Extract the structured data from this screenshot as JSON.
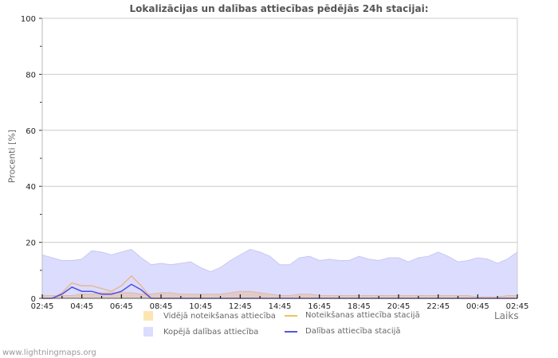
{
  "title": "Lokalizācijas un dalības attiecības pēdējās 24h stacijai:",
  "footer": "www.lightningmaps.org",
  "axes": {
    "ylabel": "Procenti  [%]",
    "xlabel": "Laiks"
  },
  "legend": [
    {
      "label": "Vidējā noteikšanas attiecība",
      "kind": "area",
      "color": "#fce5b3"
    },
    {
      "label": "Noteikšanas attiecība stacijā",
      "kind": "line",
      "color": "#f0c060"
    },
    {
      "label": "Kopējā dalības attiecība",
      "kind": "area",
      "color": "#dcdcff"
    },
    {
      "label": "Dalības attiecība stacijā",
      "kind": "line",
      "color": "#5555dd"
    }
  ],
  "chart_data": {
    "type": "area",
    "title": "Lokalizācijas un dalības attiecības pēdējās 24h stacijai:",
    "xlabel": "Laiks",
    "ylabel": "Procenti  [%]",
    "ylim": [
      0,
      100
    ],
    "yticks": [
      0,
      20,
      40,
      60,
      80,
      100
    ],
    "xtick_labels": [
      "02:45",
      "04:45",
      "06:45",
      "08:45",
      "10:45",
      "12:45",
      "14:45",
      "16:45",
      "18:45",
      "20:45",
      "22:45",
      "00:45",
      "02:45"
    ],
    "grid": true,
    "legend_position": "bottom",
    "x": [
      "02:45",
      "03:15",
      "03:45",
      "04:15",
      "04:45",
      "05:15",
      "05:45",
      "06:15",
      "06:45",
      "07:15",
      "07:45",
      "08:15",
      "08:45",
      "09:15",
      "09:45",
      "10:15",
      "10:45",
      "11:15",
      "11:45",
      "12:15",
      "12:45",
      "13:15",
      "13:45",
      "14:15",
      "14:45",
      "15:15",
      "15:45",
      "16:15",
      "16:45",
      "17:15",
      "17:45",
      "18:15",
      "18:45",
      "19:15",
      "19:45",
      "20:15",
      "20:45",
      "21:15",
      "21:45",
      "22:15",
      "22:45",
      "23:15",
      "23:45",
      "00:15",
      "00:45",
      "01:15",
      "01:45",
      "02:15",
      "02:45"
    ],
    "series": [
      {
        "name": "Kopējā dalības attiecība",
        "kind": "area",
        "color": "#dcdcff",
        "values": [
          15.5,
          14.5,
          13.5,
          13.5,
          14,
          17,
          16.5,
          15.5,
          16.5,
          17.5,
          14.5,
          12,
          12.5,
          12,
          12.5,
          13,
          11,
          9.5,
          11,
          13.5,
          15.5,
          17.5,
          16.5,
          15,
          12,
          12,
          14.5,
          15,
          13.5,
          14,
          13.5,
          13.5,
          15,
          14,
          13.5,
          14.5,
          14.5,
          13,
          14.5,
          15,
          16.5,
          15,
          13,
          13.5,
          14.5,
          14,
          12.5,
          14,
          16.5
        ]
      },
      {
        "name": "Vidējā noteikšanas attiecība",
        "kind": "area",
        "color": "#fce5b3",
        "values": [
          1,
          1,
          1,
          1,
          1.5,
          1.5,
          2,
          2,
          2,
          2,
          1.5,
          1.5,
          2,
          2,
          1.5,
          1.5,
          1.5,
          1.5,
          1.5,
          2,
          2.5,
          2.5,
          2,
          1.5,
          1,
          1,
          1.5,
          1.5,
          1,
          1,
          1,
          1,
          1,
          1,
          1,
          1,
          1,
          1,
          1,
          1,
          1,
          1,
          1,
          1,
          0.5,
          0.5,
          0.5,
          1,
          1
        ]
      },
      {
        "name": "Noteikšanas attiecība stacijā",
        "kind": "line",
        "color": "#f0c060",
        "values": [
          0,
          0,
          2,
          5.5,
          4.5,
          4.5,
          3.5,
          2.5,
          4.5,
          8,
          4.5,
          0,
          0,
          0,
          0,
          0,
          0,
          0,
          0,
          0,
          0,
          0,
          0,
          0,
          0,
          0,
          0,
          0,
          0,
          0,
          0,
          0,
          0,
          0,
          0,
          0,
          0,
          0,
          0,
          0,
          0,
          0,
          0,
          0,
          0,
          0,
          0,
          0,
          0
        ]
      },
      {
        "name": "Dalības attiecība stacijā",
        "kind": "line",
        "color": "#5555dd",
        "values": [
          0,
          0,
          1.5,
          4,
          2.5,
          2.5,
          1.5,
          1.5,
          2.5,
          5,
          3,
          0,
          0,
          0,
          0,
          0,
          0,
          0,
          0,
          0,
          0,
          0,
          0,
          0,
          0,
          0,
          0,
          0,
          0,
          0,
          0,
          0,
          0,
          0,
          0,
          0,
          0,
          0,
          0,
          0,
          0,
          0,
          0,
          0,
          0,
          0,
          0,
          0,
          0
        ]
      }
    ]
  }
}
